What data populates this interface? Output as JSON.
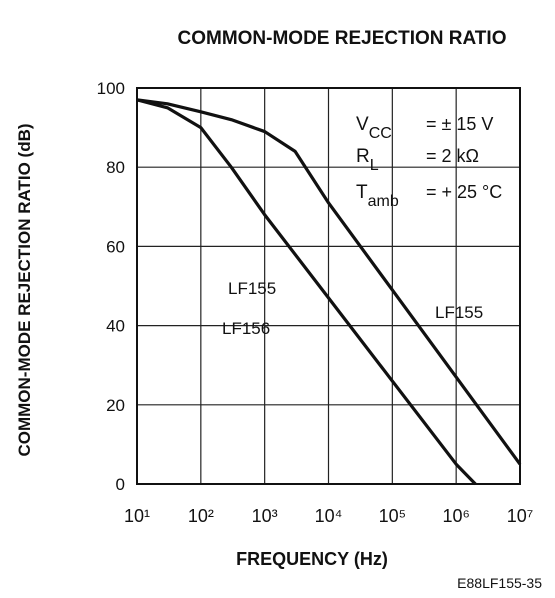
{
  "chart_data": {
    "type": "line",
    "title": "COMMON-MODE REJECTION RATIO",
    "y_label": "COMMON-MODE REJECTION RATIO (dB)",
    "x_label": "FREQUENCY (Hz)",
    "footer": "E88LF155-35",
    "x_scale": "log",
    "xlim": [
      10,
      10000000
    ],
    "xticks": [
      {
        "value": 10,
        "label": "10¹"
      },
      {
        "value": 100,
        "label": "10²"
      },
      {
        "value": 1000,
        "label": "10³"
      },
      {
        "value": 10000,
        "label": "10⁴"
      },
      {
        "value": 100000,
        "label": "10⁵"
      },
      {
        "value": 1000000,
        "label": "10⁶"
      },
      {
        "value": 10000000,
        "label": "10⁷"
      }
    ],
    "ylim": [
      0,
      100
    ],
    "yticks": [
      0,
      20,
      40,
      60,
      80,
      100
    ],
    "grid": true,
    "series": [
      {
        "name": "LF155",
        "color": "#111111",
        "x": [
          10,
          30,
          100,
          300,
          1000,
          3000,
          10000,
          100000,
          1000000,
          10000000
        ],
        "values": [
          97,
          96,
          94,
          92,
          89,
          84,
          71,
          49,
          27,
          5
        ]
      },
      {
        "name": "LF156",
        "color": "#111111",
        "x": [
          10,
          30,
          100,
          300,
          1000,
          10000,
          100000,
          1000000,
          2000000
        ],
        "values": [
          97,
          95,
          90,
          80,
          68,
          47,
          26,
          5,
          0
        ]
      }
    ],
    "annotations": [
      "LF155"
    ],
    "conditions": [
      {
        "symbol": "V",
        "sub": "CC",
        "value": "=  ± 15 V"
      },
      {
        "symbol": "R",
        "sub": "L",
        "value": "=  2 kΩ"
      },
      {
        "symbol": "T",
        "sub": "amb",
        "value": "=  + 25 °C"
      }
    ]
  }
}
